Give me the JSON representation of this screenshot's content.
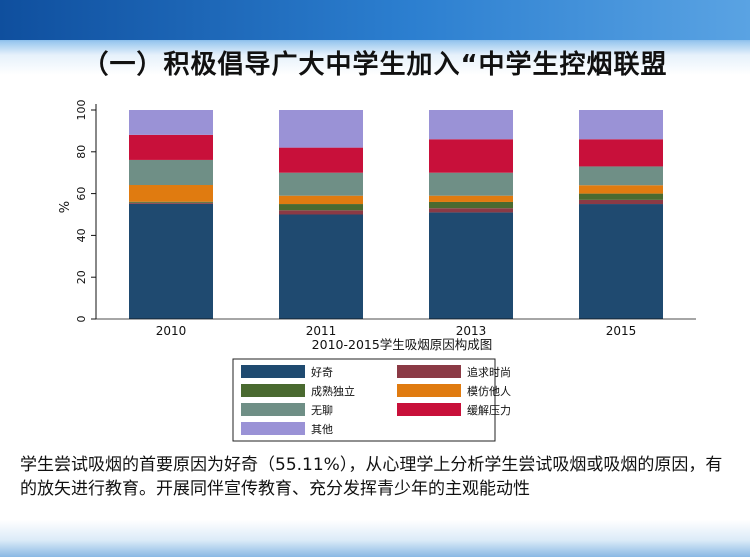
{
  "slide": {
    "title": "（一）积极倡导广大中学生加入“中学生控烟联盟",
    "body_text": "学生尝试吸烟的首要原因为好奇（55.11%），从心理学上分析学生尝试吸烟或吸烟的原因，有的放矢进行教育。开展同伴宣传教育、充分发挥青少年的主观能动性"
  },
  "chart_data": {
    "type": "bar",
    "stacked": true,
    "title": "2010-2015学生吸烟原因构成图",
    "ylabel": "%",
    "ylim": [
      0,
      100
    ],
    "yticks": [
      0,
      20,
      40,
      60,
      80,
      100
    ],
    "categories": [
      "2010",
      "2011",
      "2013",
      "2015"
    ],
    "series": [
      {
        "name": "好奇",
        "color": "#1f4a70",
        "values": [
          55.11,
          50,
          51,
          55
        ]
      },
      {
        "name": "追求时尚",
        "color": "#8b3a45",
        "values": [
          0.5,
          2,
          2,
          2
        ]
      },
      {
        "name": "成熟独立",
        "color": "#4a6a30",
        "values": [
          0.5,
          3,
          3,
          3
        ]
      },
      {
        "name": "模仿他人",
        "color": "#e07b10",
        "values": [
          8,
          4,
          3,
          4
        ]
      },
      {
        "name": "无聊",
        "color": "#6f8f86",
        "values": [
          12,
          11,
          11,
          9
        ]
      },
      {
        "name": "缓解压力",
        "color": "#c8103a",
        "values": [
          12,
          12,
          16,
          13
        ]
      },
      {
        "name": "其他",
        "color": "#9a92d6",
        "values": [
          11.89,
          18,
          14,
          14
        ]
      }
    ],
    "legend": {
      "placement": "bottom",
      "order": [
        [
          "好奇",
          "追求时尚"
        ],
        [
          "成熟独立",
          "模仿他人"
        ],
        [
          "无聊",
          "缓解压力"
        ],
        [
          "其他"
        ]
      ]
    },
    "grid": false
  }
}
